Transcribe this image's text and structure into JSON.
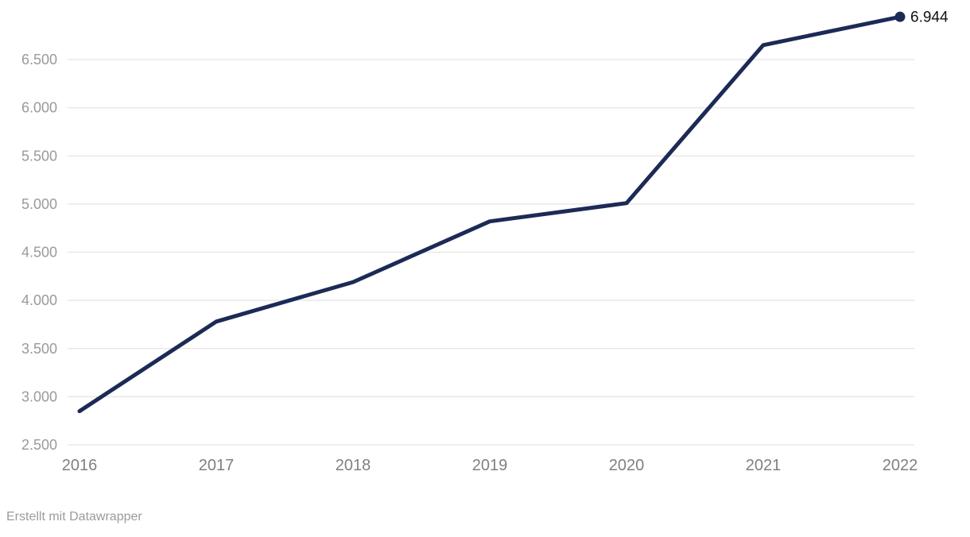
{
  "chart_data": {
    "type": "line",
    "title": "",
    "xlabel": "",
    "ylabel": "",
    "categories": [
      "2016",
      "2017",
      "2018",
      "2019",
      "2020",
      "2021",
      "2022"
    ],
    "values": [
      2850,
      3780,
      4190,
      4820,
      5010,
      6650,
      6944
    ],
    "end_label": "6.944",
    "y_ticks": [
      {
        "value": 2500,
        "label": "2.500"
      },
      {
        "value": 3000,
        "label": "3.000"
      },
      {
        "value": 3500,
        "label": "3.500"
      },
      {
        "value": 4000,
        "label": "4.000"
      },
      {
        "value": 4500,
        "label": "4.500"
      },
      {
        "value": 5000,
        "label": "5.000"
      },
      {
        "value": 5500,
        "label": "5.500"
      },
      {
        "value": 6000,
        "label": "6.000"
      },
      {
        "value": 6500,
        "label": "6.500"
      }
    ],
    "ylim": [
      2500,
      7120
    ],
    "grid": "horizontal",
    "legend": "none",
    "colors": {
      "line": "#1c2a56",
      "end_dot": "#1c2a56",
      "grid": "#e8e8e8",
      "x_tick_label": "#808080",
      "y_tick_label": "#9a9a9a",
      "end_label": "#111111"
    }
  },
  "footer": {
    "attribution": "Erstellt mit Datawrapper"
  }
}
